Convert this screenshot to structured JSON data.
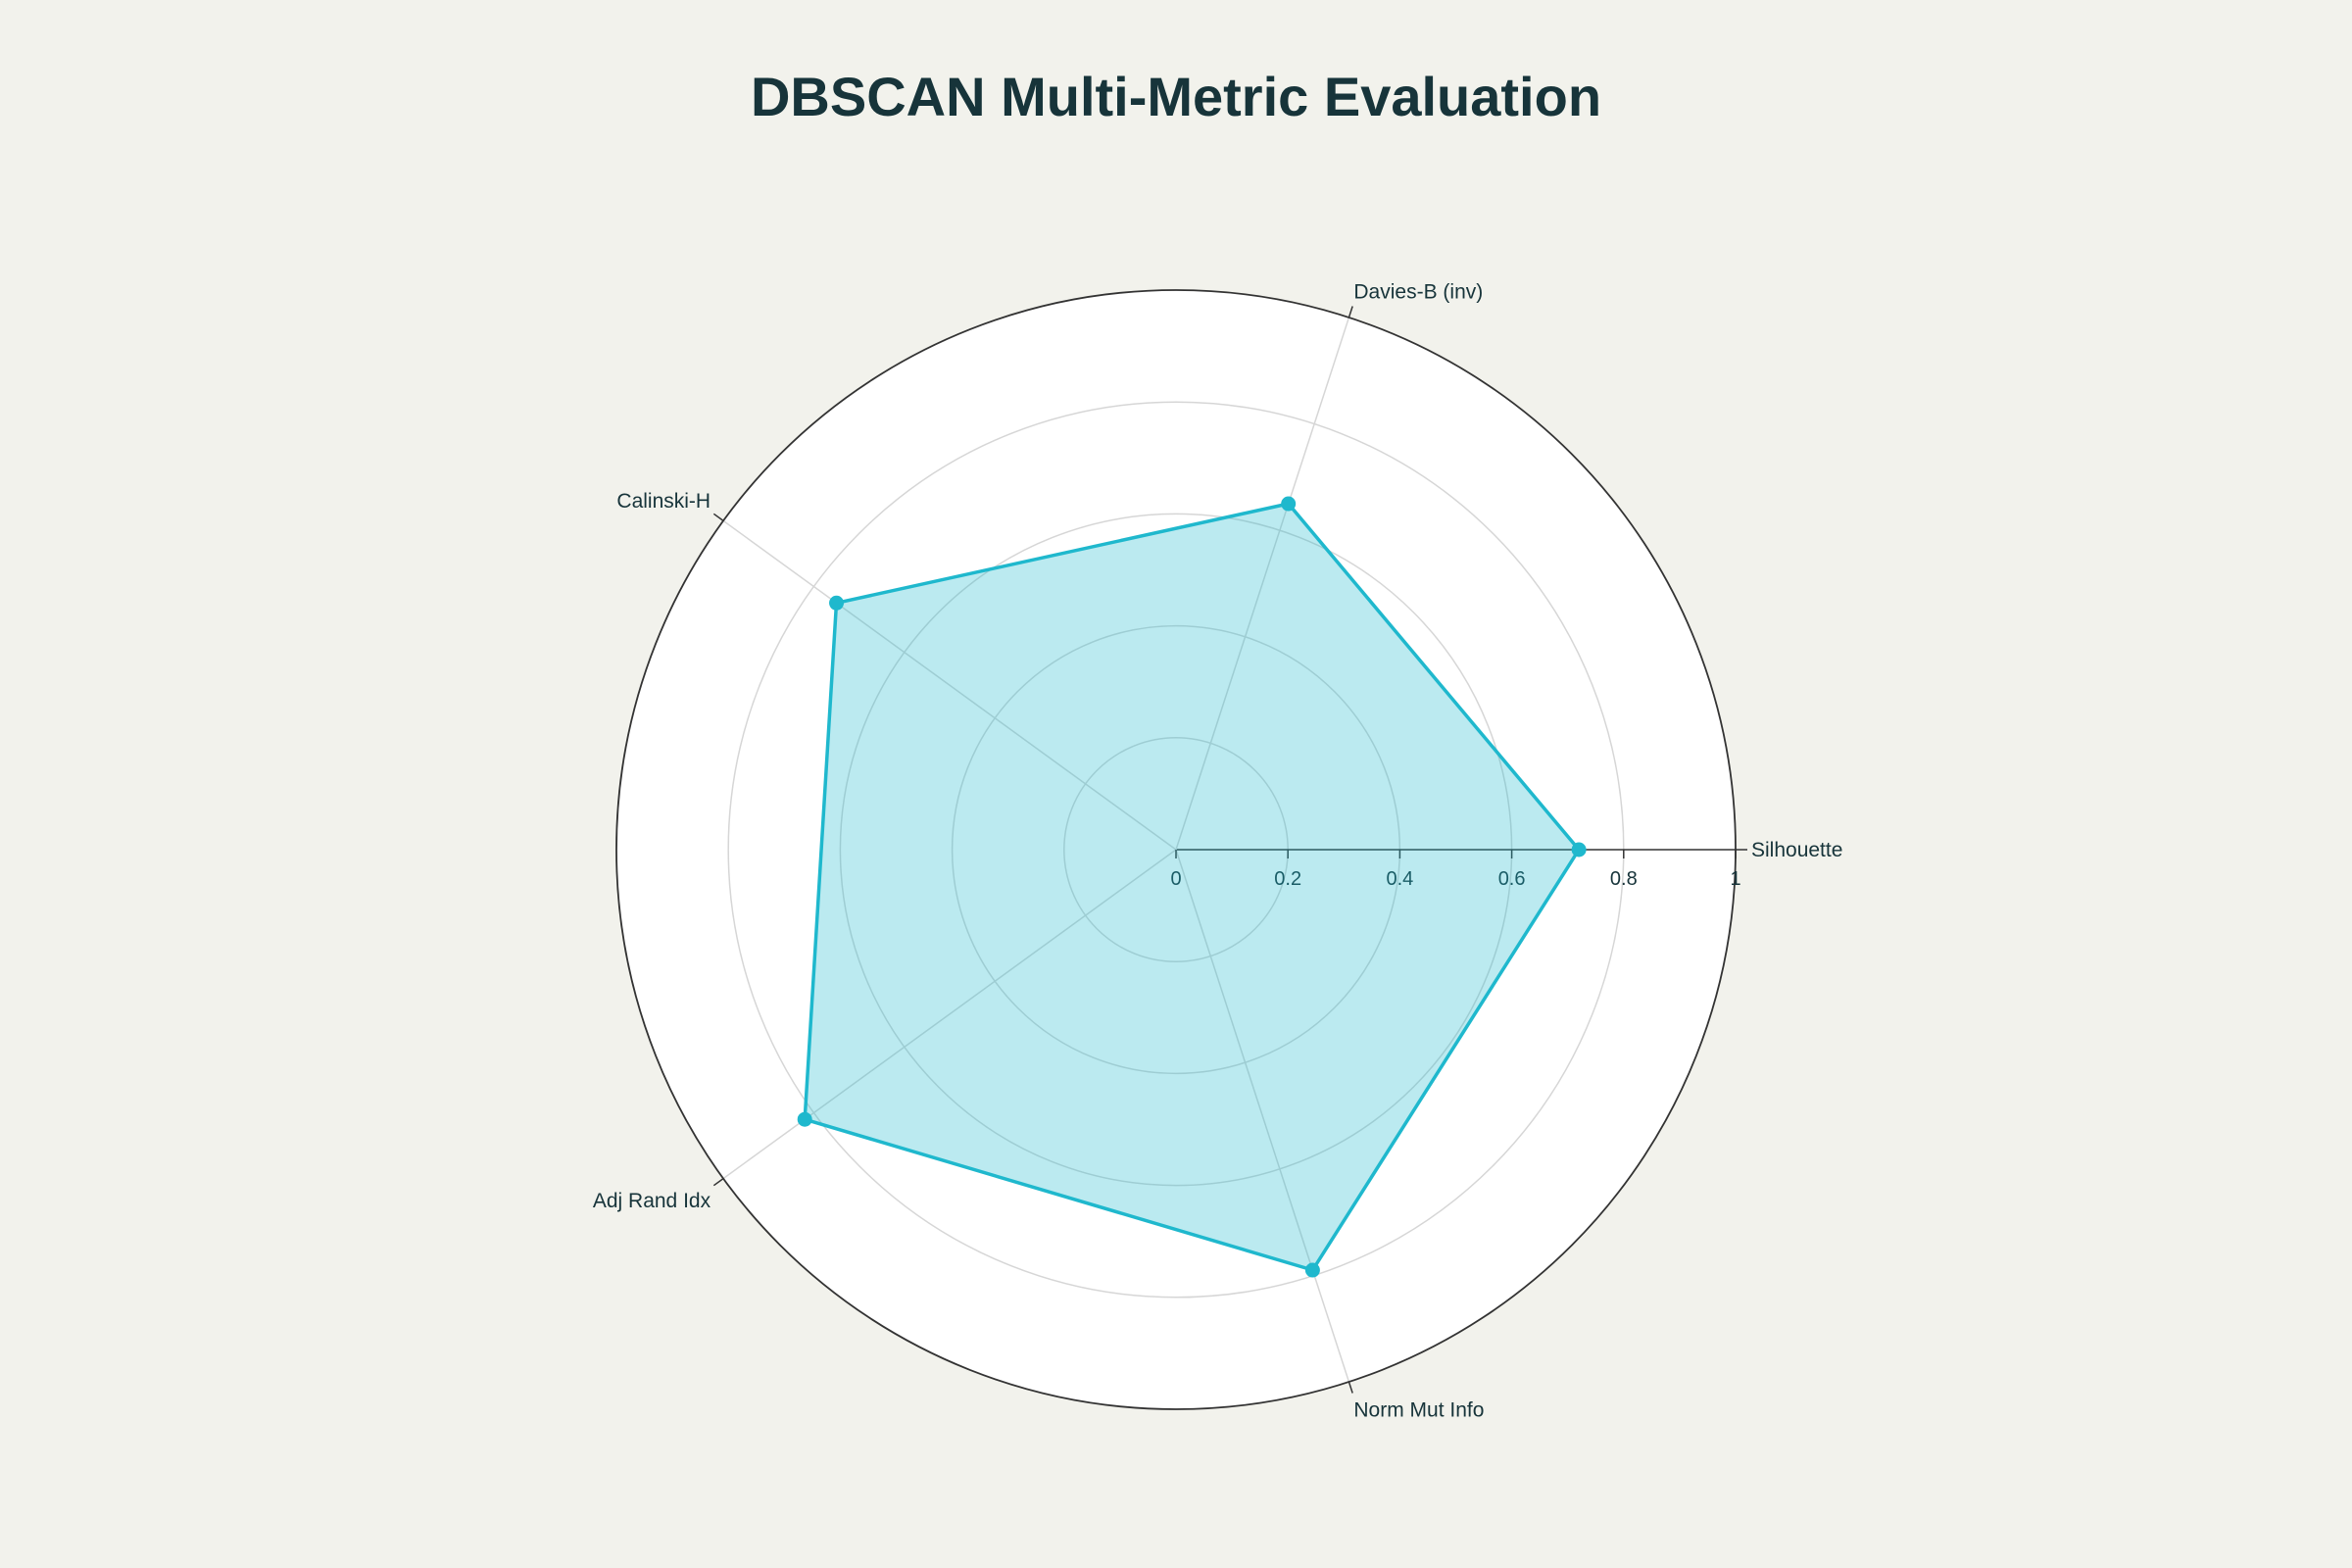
{
  "chart_data": {
    "type": "radar",
    "title": "DBSCAN Multi-Metric Evaluation",
    "axes": [
      "Silhouette",
      "Davies-B (inv)",
      "Calinski-H",
      "Adj Rand Idx",
      "Norm Mut Info"
    ],
    "series": [
      {
        "values": [
          0.72,
          0.65,
          0.75,
          0.82,
          0.79
        ]
      }
    ],
    "radial_range": [
      0,
      1
    ],
    "radial_ticks": [
      "0",
      "0.2",
      "0.4",
      "0.6",
      "0.8",
      "1"
    ],
    "radial_tick_values": [
      0,
      0.2,
      0.4,
      0.6,
      0.8,
      1
    ],
    "grid": true,
    "legend": false
  },
  "colors": {
    "background": "#f2f2ec",
    "plot_background": "#ffffff",
    "series_line": "#1fb8cd",
    "series_fill": "#1fb8cd",
    "grid": "#d6d6d6",
    "outer_ring": "#333333",
    "text": "#17343a"
  }
}
